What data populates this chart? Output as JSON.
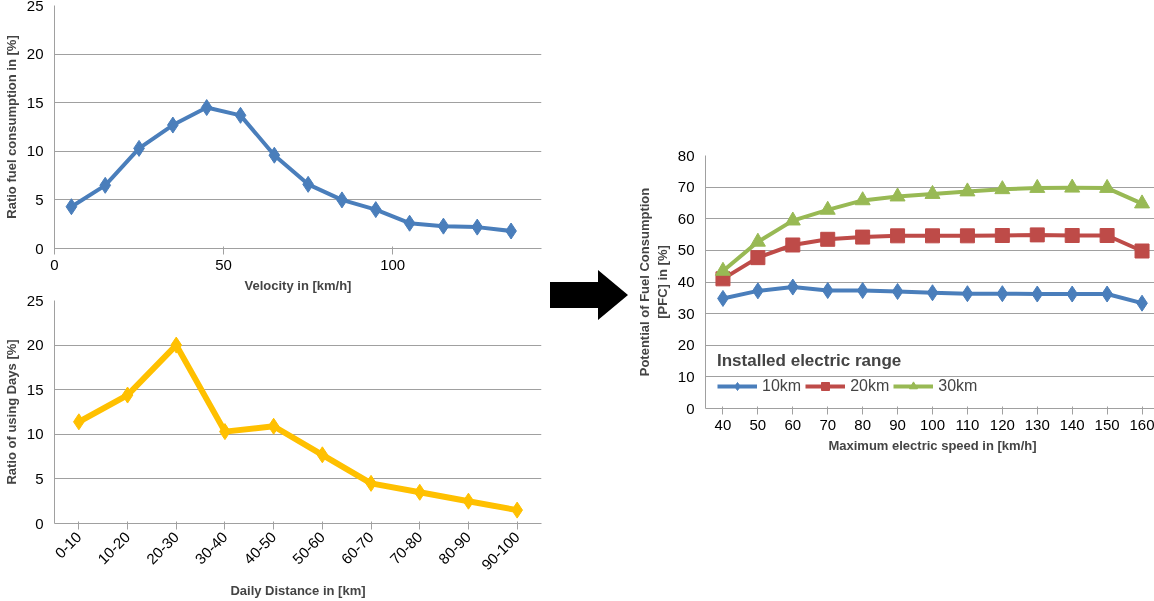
{
  "chart_data": [
    {
      "type": "line",
      "xlabel": "Velocity in [km/h]",
      "ylabel": "Ratio fuel consumption in [%]",
      "x": [
        5,
        15,
        25,
        35,
        45,
        55,
        65,
        75,
        85,
        95,
        105,
        115,
        125,
        135
      ],
      "xlim": [
        0,
        144
      ],
      "xticks": [
        0,
        50,
        100
      ],
      "ylim": [
        0,
        25
      ],
      "yticks": [
        0,
        5,
        10,
        15,
        20,
        25
      ],
      "grid": "y",
      "marker": "diamond",
      "series": [
        {
          "color": "#4a7ebb",
          "values": [
            4.3,
            6.5,
            10.3,
            12.7,
            14.5,
            13.7,
            9.6,
            6.6,
            5.0,
            4.0,
            2.6,
            2.3,
            2.2,
            1.8
          ]
        }
      ]
    },
    {
      "type": "line",
      "xlabel": "Daily Distance in [km]",
      "ylabel": "Ratio of using Days [%]",
      "categories": [
        "0-10",
        "10-20",
        "20-30",
        "30-40",
        "40-50",
        "50-60",
        "60-70",
        "70-80",
        "80-90",
        "90-100"
      ],
      "ylim": [
        0,
        25
      ],
      "yticks": [
        0,
        5,
        10,
        15,
        20,
        25
      ],
      "grid": "y",
      "marker": "diamond",
      "series": [
        {
          "color": "#ffc000",
          "values": [
            11.4,
            14.4,
            20.0,
            10.3,
            10.9,
            7.7,
            4.5,
            3.5,
            2.5,
            1.5
          ]
        }
      ]
    },
    {
      "type": "line",
      "xlabel": "Maximum electric speed in [km/h]",
      "ylabel": "Potential of Fuel Consumption [PFC] in [%]",
      "categories": [
        "40",
        "50",
        "60",
        "70",
        "80",
        "90",
        "100",
        "110",
        "120",
        "130",
        "140",
        "150",
        "160"
      ],
      "ylim": [
        0,
        80
      ],
      "yticks": [
        0,
        10,
        20,
        30,
        40,
        50,
        60,
        70,
        80
      ],
      "grid": "y",
      "legend": "bottom left",
      "legend_title": "Installed electric range",
      "series": [
        {
          "name": "10km",
          "color": "#4a7ebb",
          "marker": "diamond",
          "values": [
            34.8,
            37.2,
            38.4,
            37.3,
            37.3,
            37.0,
            36.6,
            36.3,
            36.3,
            36.2,
            36.2,
            36.2,
            33.3
          ]
        },
        {
          "name": "20km",
          "color": "#be4b48",
          "marker": "square",
          "values": [
            41.0,
            47.7,
            51.7,
            53.5,
            54.2,
            54.6,
            54.6,
            54.6,
            54.7,
            54.9,
            54.7,
            54.7,
            49.8
          ]
        },
        {
          "name": "30km",
          "color": "#98b954",
          "marker": "triangle",
          "values": [
            43.5,
            52.7,
            59.4,
            62.8,
            65.8,
            67.0,
            67.8,
            68.6,
            69.3,
            69.7,
            69.8,
            69.7,
            64.8
          ]
        }
      ]
    }
  ]
}
